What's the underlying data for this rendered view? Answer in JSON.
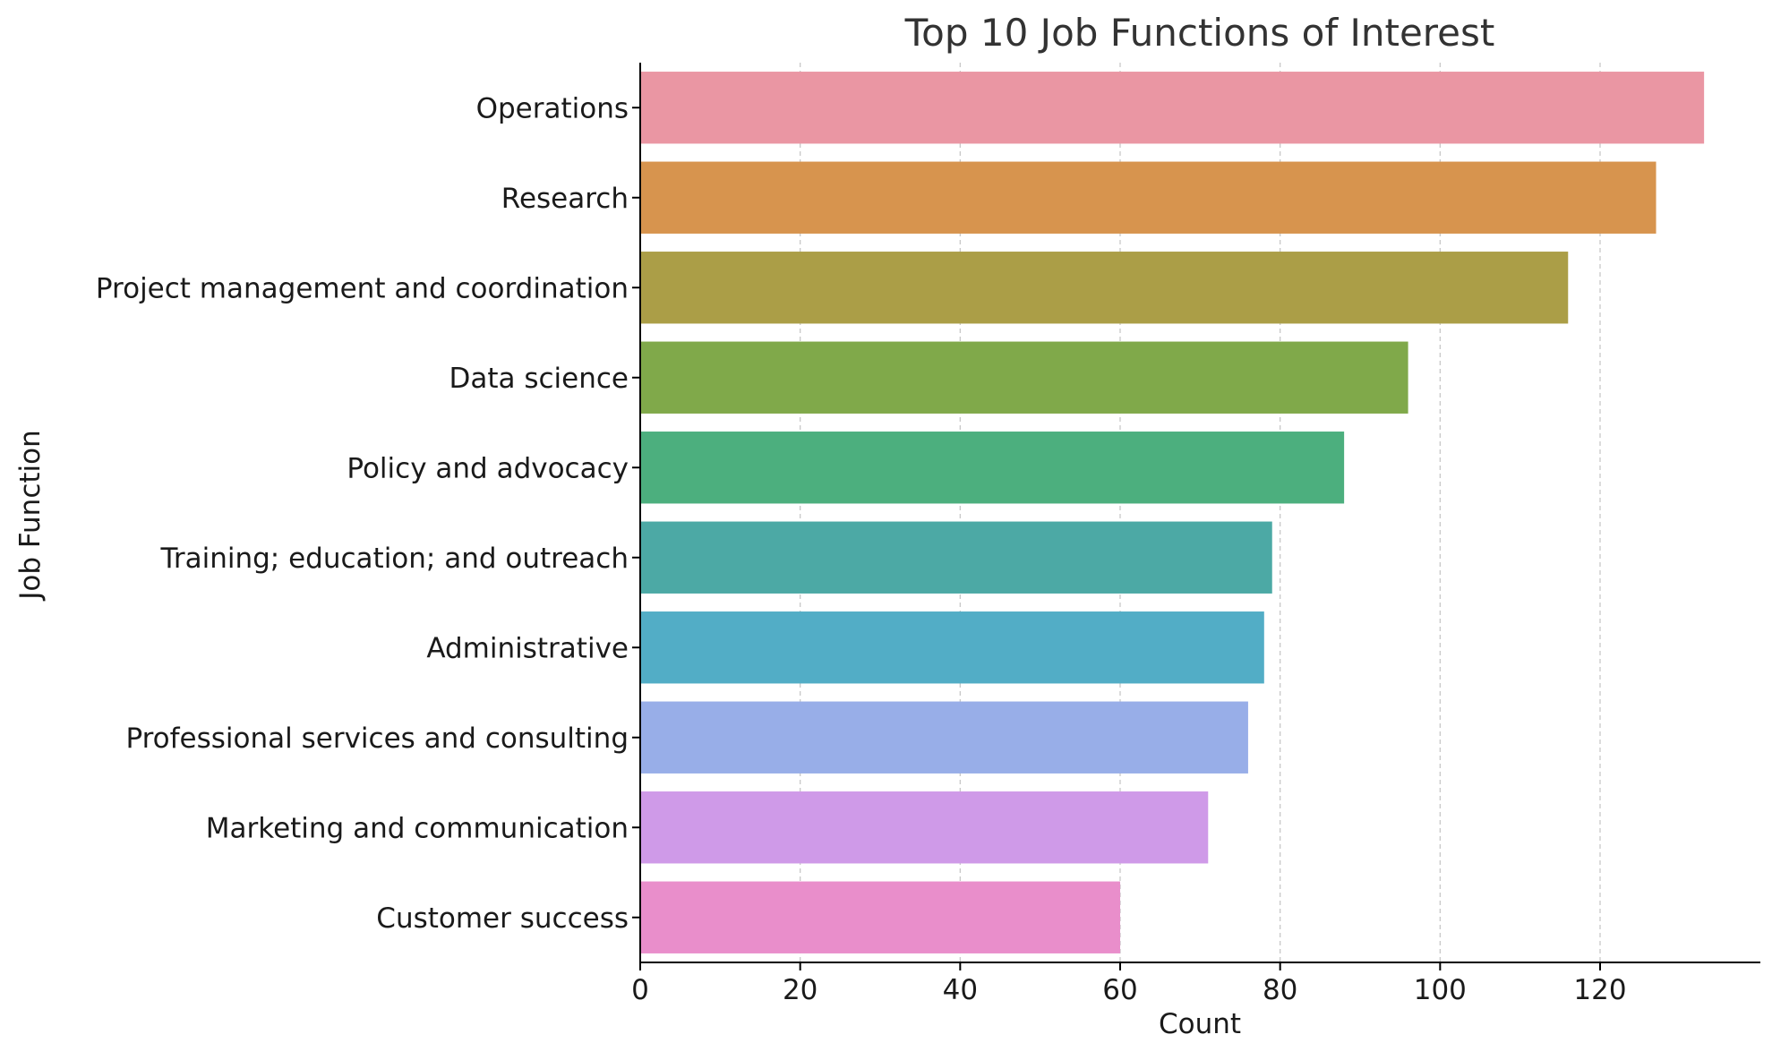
{
  "chart_data": {
    "type": "bar",
    "orientation": "horizontal",
    "title": "Top 10 Job Functions of Interest",
    "xlabel": "Count",
    "ylabel": "Job Function",
    "xlim": [
      0,
      140
    ],
    "xticks": [
      0,
      20,
      40,
      60,
      80,
      100,
      120
    ],
    "grid": "vertical dashed",
    "categories": [
      "Operations",
      "Research",
      "Project management and coordination",
      "Data science",
      "Policy and advocacy",
      "Training; education; and outreach",
      "Administrative",
      "Professional services and consulting",
      "Marketing and communication",
      "Customer success"
    ],
    "values": [
      133,
      127,
      116,
      96,
      88,
      79,
      78,
      76,
      71,
      60
    ],
    "colors": [
      "#ea96a3",
      "#d7944e",
      "#ab9e47",
      "#80a94a",
      "#4caf7e",
      "#4ca9a5",
      "#52adc6",
      "#98aee8",
      "#cf9ae8",
      "#e98ecb"
    ]
  }
}
